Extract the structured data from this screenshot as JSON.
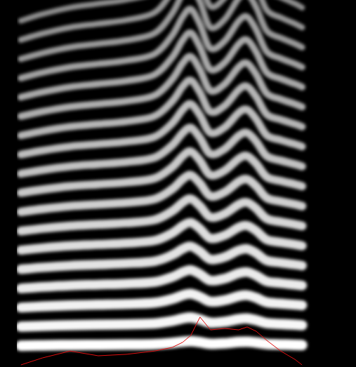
{
  "chart_data": {
    "type": "spectrogram",
    "x": [
      0.012,
      0.075,
      0.157,
      0.24,
      0.323,
      0.406,
      0.458,
      0.489,
      0.513,
      0.54,
      0.571,
      0.613,
      0.654,
      0.679,
      0.706,
      0.737,
      0.778,
      0.82,
      0.841
    ],
    "f0": [
      262,
      267,
      272,
      275,
      278,
      284,
      301,
      318,
      325,
      311,
      289,
      296,
      314,
      318,
      306,
      286,
      280,
      275,
      272
    ],
    "harmonics": 18,
    "intensity": [
      0,
      1.9,
      3.8,
      2.5,
      2.9,
      3.8,
      4.8,
      6.2,
      8.1,
      13.1,
      9.6,
      10,
      9.6,
      10.4,
      9.2,
      6.7,
      3.8,
      1.5,
      0
    ],
    "xlim": [
      0,
      1.0
    ],
    "ylim": [
      0,
      5000
    ],
    "y2lim": [
      0,
      100
    ],
    "color": "#ffffff",
    "tick_labels": false,
    "grid": false
  }
}
